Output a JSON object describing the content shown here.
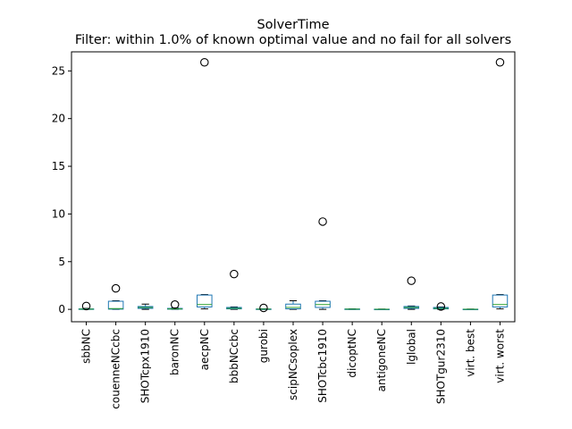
{
  "chart_data": {
    "type": "box",
    "title": "SolverTime",
    "subtitle": "Filter: within 1.0% of known optimal value and no fail for all solvers",
    "xlabel": "",
    "ylabel": "",
    "ylim": [
      -1.3,
      27.0
    ],
    "yticks": [
      0,
      5,
      10,
      15,
      20,
      25
    ],
    "grid": false,
    "box_color": "#1f77b4",
    "median_color": "#2ca02c",
    "outlier_style": "open-circle",
    "categories": [
      "sbbNC",
      "couenneNCcbc",
      "SHOTcpx1910",
      "baronNC",
      "aecpNC",
      "bbbNCcbc",
      "gurobi",
      "scipNCsoplex",
      "SHOTcbc1910",
      "dicoptNC",
      "antigoneNC",
      "lglobal",
      "SHOTgur2310",
      "virt. best",
      "virt. worst"
    ],
    "boxes": [
      {
        "label": "sbbNC",
        "whislo": 0.0,
        "q1": 0.0,
        "med": 0.02,
        "q3": 0.05,
        "whishi": 0.1,
        "fliers": [
          0.35
        ]
      },
      {
        "label": "couenneNCcbc",
        "whislo": 0.0,
        "q1": 0.02,
        "med": 0.08,
        "q3": 0.85,
        "whishi": 0.9,
        "fliers": [
          2.2
        ]
      },
      {
        "label": "SHOTcpx1910",
        "whislo": 0.0,
        "q1": 0.1,
        "med": 0.2,
        "q3": 0.3,
        "whishi": 0.55,
        "fliers": []
      },
      {
        "label": "baronNC",
        "whislo": 0.0,
        "q1": 0.02,
        "med": 0.05,
        "q3": 0.1,
        "whishi": 0.15,
        "fliers": [
          0.5
        ]
      },
      {
        "label": "aecpNC",
        "whislo": 0.05,
        "q1": 0.25,
        "med": 0.5,
        "q3": 1.5,
        "whishi": 1.55,
        "fliers": [
          25.9
        ]
      },
      {
        "label": "bbbNCcbc",
        "whislo": 0.0,
        "q1": 0.05,
        "med": 0.1,
        "q3": 0.2,
        "whishi": 0.25,
        "fliers": [
          3.7
        ]
      },
      {
        "label": "gurobi",
        "whislo": 0.0,
        "q1": 0.0,
        "med": 0.02,
        "q3": 0.04,
        "whishi": 0.06,
        "fliers": [
          0.15
        ]
      },
      {
        "label": "scipNCsoplex",
        "whislo": 0.0,
        "q1": 0.05,
        "med": 0.2,
        "q3": 0.55,
        "whishi": 0.9,
        "fliers": []
      },
      {
        "label": "SHOTcbc1910",
        "whislo": 0.0,
        "q1": 0.2,
        "med": 0.5,
        "q3": 0.85,
        "whishi": 0.9,
        "fliers": [
          9.2
        ]
      },
      {
        "label": "dicoptNC",
        "whislo": 0.0,
        "q1": 0.0,
        "med": 0.02,
        "q3": 0.04,
        "whishi": 0.05,
        "fliers": []
      },
      {
        "label": "antigoneNC",
        "whislo": 0.0,
        "q1": 0.0,
        "med": 0.01,
        "q3": 0.02,
        "whishi": 0.03,
        "fliers": []
      },
      {
        "label": "lglobal",
        "whislo": 0.0,
        "q1": 0.1,
        "med": 0.2,
        "q3": 0.3,
        "whishi": 0.35,
        "fliers": [
          3.0
        ]
      },
      {
        "label": "SHOTgur2310",
        "whislo": 0.0,
        "q1": 0.05,
        "med": 0.1,
        "q3": 0.2,
        "whishi": 0.25,
        "fliers": [
          0.3
        ]
      },
      {
        "label": "virt. best",
        "whislo": 0.0,
        "q1": 0.0,
        "med": 0.01,
        "q3": 0.02,
        "whishi": 0.03,
        "fliers": []
      },
      {
        "label": "virt. worst",
        "whislo": 0.05,
        "q1": 0.25,
        "med": 0.5,
        "q3": 1.5,
        "whishi": 1.55,
        "fliers": [
          25.9
        ]
      }
    ]
  }
}
